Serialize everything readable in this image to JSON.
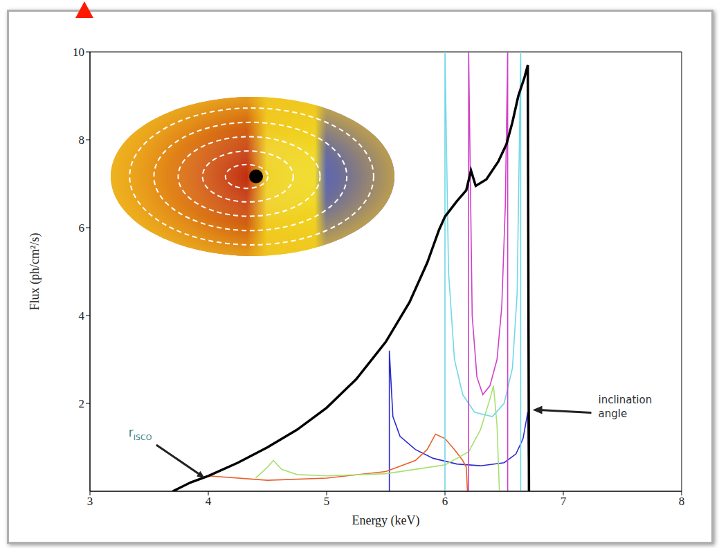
{
  "chart_data": {
    "type": "line",
    "x_label": "Energy (keV)",
    "y_label": "Flux (ph/cm²/s)",
    "xlim": [
      3,
      8
    ],
    "xticks": [
      3,
      4,
      5,
      6,
      7,
      8
    ],
    "ylim": [
      0,
      10
    ],
    "yticks": [
      2,
      4,
      6,
      8,
      10
    ],
    "grid": false,
    "series": [
      {
        "color": "#000000",
        "x": [
          3.7,
          3.85,
          4.0,
          4.25,
          4.5,
          4.75,
          5.0,
          5.25,
          5.5,
          5.7,
          5.85,
          5.95,
          6.0,
          6.1,
          6.18,
          6.22,
          6.26,
          6.35,
          6.45,
          6.52,
          6.57,
          6.62,
          6.67,
          6.7,
          6.71
        ],
        "values": [
          0,
          0.2,
          0.35,
          0.65,
          1.0,
          1.4,
          1.9,
          2.55,
          3.4,
          4.3,
          5.2,
          5.95,
          6.25,
          6.6,
          6.85,
          7.3,
          6.95,
          7.1,
          7.5,
          7.9,
          8.4,
          9.0,
          9.4,
          9.7,
          0
        ]
      },
      {
        "color": "#2a2ad0",
        "x": [
          5.53,
          5.53,
          5.56,
          5.62,
          5.75,
          5.9,
          6.1,
          6.3,
          6.5,
          6.6,
          6.66,
          6.7,
          6.71
        ],
        "values": [
          0,
          3.2,
          1.7,
          1.25,
          0.95,
          0.75,
          0.62,
          0.58,
          0.65,
          0.85,
          1.2,
          1.8,
          0
        ]
      },
      {
        "color": "#e8602a",
        "x": [
          4.0,
          4.5,
          5.0,
          5.5,
          5.75,
          5.85,
          5.92,
          6.0,
          6.08,
          6.15,
          6.18,
          6.19
        ],
        "values": [
          0.35,
          0.25,
          0.3,
          0.45,
          0.7,
          0.95,
          1.3,
          1.2,
          0.95,
          0.7,
          0.55,
          0
        ]
      },
      {
        "color": "#a8e070",
        "x": [
          4.4,
          4.5,
          4.55,
          4.62,
          4.75,
          5.0,
          5.5,
          6.0,
          6.2,
          6.3,
          6.38,
          6.41,
          6.44,
          6.46
        ],
        "values": [
          0.3,
          0.55,
          0.7,
          0.5,
          0.38,
          0.35,
          0.4,
          0.6,
          0.9,
          1.4,
          2.1,
          2.4,
          1.5,
          0
        ]
      },
      {
        "color": "#70d8e8",
        "x": [
          6.0,
          6.0,
          6.03,
          6.08,
          6.15,
          6.25,
          6.4,
          6.5,
          6.57,
          6.61,
          6.64,
          6.64
        ],
        "values": [
          0,
          10,
          5.0,
          3.0,
          2.2,
          1.8,
          1.7,
          2.0,
          2.8,
          4.5,
          10,
          0
        ]
      },
      {
        "color": "#d040c8",
        "x": [
          6.2,
          6.2,
          6.23,
          6.27,
          6.32,
          6.38,
          6.44,
          6.48,
          6.51,
          6.53,
          6.53
        ],
        "values": [
          0,
          10,
          4.0,
          2.6,
          2.2,
          2.4,
          3.0,
          4.2,
          6.5,
          10,
          0
        ]
      }
    ],
    "annotations": [
      {
        "text": "r",
        "subscript": "ISCO",
        "x": 3.97,
        "y": 0.3,
        "color": "#3d7f86"
      },
      {
        "text": "inclination angle",
        "x": 6.74,
        "y": 1.85,
        "color": "#333333"
      }
    ]
  }
}
